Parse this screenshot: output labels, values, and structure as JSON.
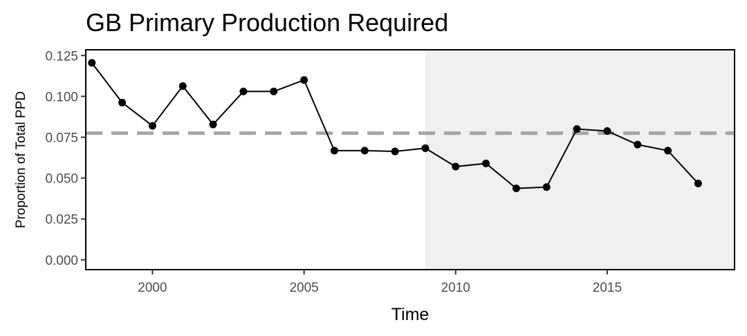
{
  "chart_data": {
    "type": "line",
    "title": "GB Primary Production Required",
    "xlabel": "Time",
    "ylabel": "Proportion of Total PPD",
    "xlim": [
      1997.8,
      2019.2
    ],
    "ylim": [
      -0.006,
      0.1285
    ],
    "x_ticks": [
      2000,
      2005,
      2010,
      2015
    ],
    "x_tick_labels": [
      "2000",
      "2005",
      "2010",
      "2015"
    ],
    "y_ticks": [
      0,
      0.025,
      0.05,
      0.075,
      0.1,
      0.125
    ],
    "y_tick_labels": [
      "0.000",
      "0.025",
      "0.050",
      "0.075",
      "0.100",
      "0.125"
    ],
    "grid": false,
    "legend": "none",
    "shaded_region": {
      "x_start": 2009,
      "x_end": 2019.2,
      "color": "#f0f0f0"
    },
    "reference_line": {
      "y": 0.0775,
      "style": "dashed",
      "color": "#a6a6a6"
    },
    "series": [
      {
        "color": "#000000",
        "x": [
          1998,
          1999,
          2000,
          2001,
          2002,
          2003,
          2004,
          2005,
          2006,
          2007,
          2008,
          2009,
          2010,
          2011,
          2012,
          2013,
          2014,
          2015,
          2016,
          2017,
          2018
        ],
        "y": [
          0.1205,
          0.0962,
          0.082,
          0.1063,
          0.0828,
          0.103,
          0.103,
          0.11,
          0.0668,
          0.0668,
          0.0663,
          0.0683,
          0.057,
          0.059,
          0.0437,
          0.0445,
          0.08,
          0.0788,
          0.0705,
          0.0668,
          0.0467
        ]
      }
    ]
  }
}
